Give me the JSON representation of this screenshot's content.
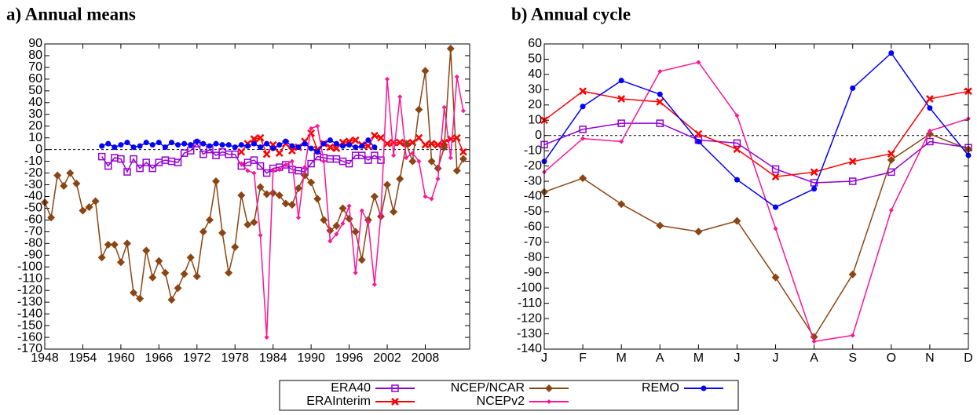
{
  "chart_data": [
    {
      "type": "line",
      "title": "a) Annual means",
      "x": [
        1948,
        1949,
        1950,
        1951,
        1952,
        1953,
        1954,
        1955,
        1956,
        1957,
        1958,
        1959,
        1960,
        1961,
        1962,
        1963,
        1964,
        1965,
        1966,
        1967,
        1968,
        1969,
        1970,
        1971,
        1972,
        1973,
        1974,
        1975,
        1976,
        1977,
        1978,
        1979,
        1980,
        1981,
        1982,
        1983,
        1984,
        1985,
        1986,
        1987,
        1988,
        1989,
        1990,
        1991,
        1992,
        1993,
        1994,
        1995,
        1996,
        1997,
        1998,
        1999,
        2000,
        2001,
        2002,
        2003,
        2004,
        2005,
        2006,
        2007,
        2008,
        2009,
        2010,
        2011,
        2012,
        2013,
        2014
      ],
      "xlim": [
        1948,
        2015
      ],
      "xticks": [
        1948,
        1954,
        1960,
        1966,
        1972,
        1978,
        1984,
        1990,
        1996,
        2002,
        2008
      ],
      "ylim": [
        -170,
        90
      ],
      "yticks": [
        -170,
        -160,
        -150,
        -140,
        -130,
        -120,
        -110,
        -100,
        -90,
        -80,
        -70,
        -60,
        -50,
        -40,
        -30,
        -20,
        -10,
        0,
        10,
        20,
        30,
        40,
        50,
        60,
        70,
        80,
        90
      ],
      "zero_line": true,
      "legend": "bottom",
      "series": [
        {
          "name": "ERA40",
          "color": "#9400d3",
          "marker": "square-open",
          "values": [
            null,
            null,
            null,
            null,
            null,
            null,
            null,
            null,
            null,
            -6,
            -14,
            -7,
            -8,
            -19,
            -8,
            -16,
            -11,
            -16,
            -11,
            -9,
            -10,
            -11,
            -3,
            -1,
            5,
            -4,
            0,
            -5,
            -2,
            -4,
            -4,
            -14,
            -11,
            -9,
            -14,
            -20,
            -16,
            -15,
            -13,
            -17,
            -18,
            -19,
            -12,
            -6,
            -7,
            -8,
            -8,
            -10,
            -12,
            -5,
            -5,
            -9,
            -5,
            -9,
            null,
            null,
            null,
            null,
            null,
            null,
            null,
            null,
            null,
            null,
            null,
            null,
            null
          ]
        },
        {
          "name": "ERAInterim",
          "color": "#ff0000",
          "marker": "x",
          "values": [
            null,
            null,
            null,
            null,
            null,
            null,
            null,
            null,
            null,
            null,
            null,
            null,
            null,
            null,
            null,
            null,
            null,
            null,
            null,
            null,
            null,
            null,
            null,
            null,
            null,
            null,
            null,
            null,
            null,
            null,
            null,
            -2,
            5,
            9,
            10,
            -4,
            4,
            -3,
            5,
            -1,
            2,
            7,
            14,
            0,
            5,
            2,
            1,
            6,
            7,
            8,
            4,
            3,
            12,
            10,
            5,
            6,
            6,
            5,
            6,
            10,
            4,
            5,
            4,
            6,
            9,
            10,
            -2
          ]
        },
        {
          "name": "NCEP/NCAR",
          "color": "#8b4513",
          "marker": "diamond",
          "values": [
            -45,
            -58,
            -22,
            -31,
            -20,
            -29,
            -52,
            -49,
            -44,
            -92,
            -81,
            -81,
            -96,
            -80,
            -122,
            -127,
            -86,
            -109,
            -95,
            -105,
            -128,
            -118,
            -106,
            -92,
            -108,
            -70,
            -60,
            -27,
            -71,
            -105,
            -83,
            -39,
            -64,
            -62,
            -32,
            -38,
            -37,
            -39,
            -46,
            -47,
            -33,
            -22,
            -28,
            -42,
            -60,
            -69,
            -65,
            -50,
            -59,
            -70,
            -94,
            -60,
            -40,
            -57,
            -30,
            -53,
            -25,
            5,
            -10,
            34,
            67,
            -10,
            -16,
            2,
            86,
            -18,
            -8
          ]
        },
        {
          "name": "NCEPv2",
          "color": "#ff1493",
          "marker": "small-diamond",
          "values": [
            null,
            null,
            null,
            null,
            null,
            null,
            null,
            null,
            null,
            null,
            null,
            null,
            null,
            null,
            null,
            null,
            null,
            null,
            null,
            null,
            null,
            null,
            null,
            null,
            null,
            null,
            null,
            null,
            null,
            null,
            null,
            -12,
            -18,
            -20,
            -73,
            -160,
            -18,
            -17,
            -13,
            -10,
            -58,
            -15,
            18,
            20,
            -10,
            -78,
            -72,
            -63,
            -48,
            -105,
            -52,
            -62,
            -115,
            -55,
            60,
            -5,
            45,
            -7,
            -3,
            -10,
            -40,
            -42,
            -25,
            36,
            -7,
            62,
            33
          ]
        },
        {
          "name": "REMO",
          "color": "#0000ff",
          "marker": "circle",
          "values": [
            null,
            null,
            null,
            null,
            null,
            null,
            null,
            null,
            null,
            3,
            5,
            2,
            4,
            6,
            2,
            3,
            6,
            4,
            6,
            2,
            6,
            4,
            5,
            4,
            7,
            5,
            3,
            5,
            4,
            4,
            2,
            4,
            3,
            5,
            2,
            5,
            1,
            4,
            7,
            3,
            2,
            5,
            1,
            -2,
            5,
            8,
            5,
            3,
            4,
            2,
            3,
            8,
            2,
            null,
            null,
            null,
            null,
            null,
            null,
            null,
            null,
            null,
            null,
            null,
            null,
            null,
            null
          ]
        }
      ]
    },
    {
      "type": "line",
      "title": "b) Annual cycle",
      "categories": [
        "J",
        "F",
        "M",
        "A",
        "M",
        "J",
        "J",
        "A",
        "S",
        "O",
        "N",
        "D"
      ],
      "ylim": [
        -140,
        60
      ],
      "yticks": [
        -140,
        -130,
        -120,
        -110,
        -100,
        -90,
        -80,
        -70,
        -60,
        -50,
        -40,
        -30,
        -20,
        -10,
        0,
        10,
        20,
        30,
        40,
        50,
        60
      ],
      "zero_line": true,
      "series": [
        {
          "name": "ERA40",
          "color": "#9400d3",
          "marker": "square-open",
          "values": [
            -6,
            4,
            8,
            8,
            -3,
            -5,
            -22,
            -31,
            -30,
            -24,
            -4,
            -8
          ]
        },
        {
          "name": "ERAInterim",
          "color": "#ff0000",
          "marker": "x",
          "values": [
            10,
            29,
            24,
            22,
            1,
            -9,
            -27,
            -24,
            -17,
            -12,
            24,
            29
          ]
        },
        {
          "name": "NCEP/NCAR",
          "color": "#8b4513",
          "marker": "diamond",
          "values": [
            -37,
            -28,
            -45,
            -59,
            -63,
            -56,
            -93,
            -132,
            -91,
            -16,
            1,
            -9
          ]
        },
        {
          "name": "NCEPv2",
          "color": "#ff1493",
          "marker": "small-diamond",
          "values": [
            -24,
            -2,
            -4,
            42,
            48,
            13,
            -61,
            -135,
            -131,
            -49,
            3,
            11
          ]
        },
        {
          "name": "REMO",
          "color": "#0000ff",
          "marker": "circle",
          "values": [
            -17,
            19,
            36,
            27,
            -4,
            -29,
            -47,
            -35,
            31,
            54,
            18,
            -13
          ]
        }
      ]
    }
  ]
}
